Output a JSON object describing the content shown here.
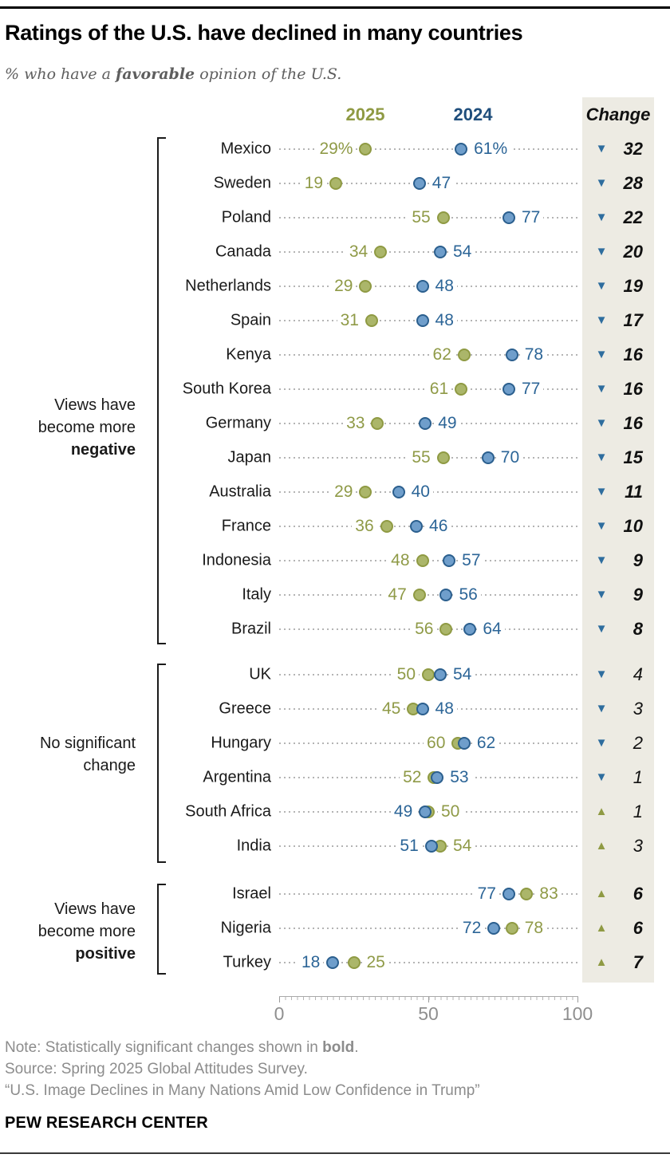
{
  "header": {
    "title": "Ratings of the U.S. have declined in many countries",
    "subtitle": {
      "prefix": "% who have a ",
      "bold": "favorable",
      "suffix": " opinion of the U.S."
    },
    "col_2025": "2025",
    "col_2024": "2024",
    "col_change": "Change"
  },
  "chart_data": {
    "type": "scatter",
    "subtype": "dumbbell-dot-plot",
    "series": [
      "2025",
      "2024"
    ],
    "colors": {
      "olive_2025": "#8f9a43",
      "blue_2024": "#2b5f8e",
      "change_bg": "#edebe3"
    },
    "xlim": [
      0,
      100
    ],
    "x_ticks": [
      "0",
      "50",
      "100"
    ],
    "legend_position": "top",
    "grid": false,
    "groups": [
      {
        "id": "negative",
        "label_lines": [
          "Views have",
          "become more",
          "negative"
        ],
        "bold_line_index": 2,
        "significant": true,
        "rows": [
          {
            "country": "Mexico",
            "v2025": 29,
            "v2024": 61,
            "l2025": "29%",
            "l2024": "61%",
            "change": "32",
            "dir": "down"
          },
          {
            "country": "Sweden",
            "v2025": 19,
            "v2024": 47,
            "l2025": "19",
            "l2024": "47",
            "change": "28",
            "dir": "down"
          },
          {
            "country": "Poland",
            "v2025": 55,
            "v2024": 77,
            "l2025": "55",
            "l2024": "77",
            "change": "22",
            "dir": "down"
          },
          {
            "country": "Canada",
            "v2025": 34,
            "v2024": 54,
            "l2025": "34",
            "l2024": "54",
            "change": "20",
            "dir": "down"
          },
          {
            "country": "Netherlands",
            "v2025": 29,
            "v2024": 48,
            "l2025": "29",
            "l2024": "48",
            "change": "19",
            "dir": "down"
          },
          {
            "country": "Spain",
            "v2025": 31,
            "v2024": 48,
            "l2025": "31",
            "l2024": "48",
            "change": "17",
            "dir": "down"
          },
          {
            "country": "Kenya",
            "v2025": 62,
            "v2024": 78,
            "l2025": "62",
            "l2024": "78",
            "change": "16",
            "dir": "down"
          },
          {
            "country": "South Korea",
            "v2025": 61,
            "v2024": 77,
            "l2025": "61",
            "l2024": "77",
            "change": "16",
            "dir": "down"
          },
          {
            "country": "Germany",
            "v2025": 33,
            "v2024": 49,
            "l2025": "33",
            "l2024": "49",
            "change": "16",
            "dir": "down"
          },
          {
            "country": "Japan",
            "v2025": 55,
            "v2024": 70,
            "l2025": "55",
            "l2024": "70",
            "change": "15",
            "dir": "down"
          },
          {
            "country": "Australia",
            "v2025": 29,
            "v2024": 40,
            "l2025": "29",
            "l2024": "40",
            "change": "11",
            "dir": "down"
          },
          {
            "country": "France",
            "v2025": 36,
            "v2024": 46,
            "l2025": "36",
            "l2024": "46",
            "change": "10",
            "dir": "down"
          },
          {
            "country": "Indonesia",
            "v2025": 48,
            "v2024": 57,
            "l2025": "48",
            "l2024": "57",
            "change": "9",
            "dir": "down"
          },
          {
            "country": "Italy",
            "v2025": 47,
            "v2024": 56,
            "l2025": "47",
            "l2024": "56",
            "change": "9",
            "dir": "down"
          },
          {
            "country": "Brazil",
            "v2025": 56,
            "v2024": 64,
            "l2025": "56",
            "l2024": "64",
            "change": "8",
            "dir": "down"
          }
        ]
      },
      {
        "id": "no-significant-change",
        "label_lines": [
          "No significant",
          "change"
        ],
        "bold_line_index": -1,
        "significant": false,
        "rows": [
          {
            "country": "UK",
            "v2025": 50,
            "v2024": 54,
            "l2025": "50",
            "l2024": "54",
            "change": "4",
            "dir": "down"
          },
          {
            "country": "Greece",
            "v2025": 45,
            "v2024": 48,
            "l2025": "45",
            "l2024": "48",
            "change": "3",
            "dir": "down"
          },
          {
            "country": "Hungary",
            "v2025": 60,
            "v2024": 62,
            "l2025": "60",
            "l2024": "62",
            "change": "2",
            "dir": "down"
          },
          {
            "country": "Argentina",
            "v2025": 52,
            "v2024": 53,
            "l2025": "52",
            "l2024": "53",
            "change": "1",
            "dir": "down"
          },
          {
            "country": "South Africa",
            "v2025": 50,
            "v2024": 49,
            "l2025": "50",
            "l2024": "49",
            "change": "1",
            "dir": "up"
          },
          {
            "country": "India",
            "v2025": 54,
            "v2024": 51,
            "l2025": "54",
            "l2024": "51",
            "change": "3",
            "dir": "up"
          }
        ]
      },
      {
        "id": "positive",
        "label_lines": [
          "Views have",
          "become more",
          "positive"
        ],
        "bold_line_index": 2,
        "significant": true,
        "rows": [
          {
            "country": "Israel",
            "v2025": 83,
            "v2024": 77,
            "l2025": "83",
            "l2024": "77",
            "change": "6",
            "dir": "up"
          },
          {
            "country": "Nigeria",
            "v2025": 78,
            "v2024": 72,
            "l2025": "78",
            "l2024": "72",
            "change": "6",
            "dir": "up"
          },
          {
            "country": "Turkey",
            "v2025": 25,
            "v2024": 18,
            "l2025": "25",
            "l2024": "18",
            "change": "7",
            "dir": "up"
          }
        ]
      }
    ],
    "title": "Ratings of the U.S. have declined in many countries",
    "xlabel": "",
    "ylabel": ""
  },
  "icons": {
    "down_triangle": "▼",
    "up_triangle": "▲"
  },
  "notes": {
    "lines": [
      {
        "pre": "Note: Statistically significant changes shown in ",
        "bold": "bold",
        "post": "."
      },
      {
        "pre": "Source: Spring 2025 Global Attitudes Survey.",
        "bold": "",
        "post": ""
      },
      {
        "pre": "“U.S. Image Declines in Many Nations Amid Low Confidence in Trump”",
        "bold": "",
        "post": ""
      }
    ]
  },
  "footer": {
    "brand": "PEW RESEARCH CENTER"
  }
}
